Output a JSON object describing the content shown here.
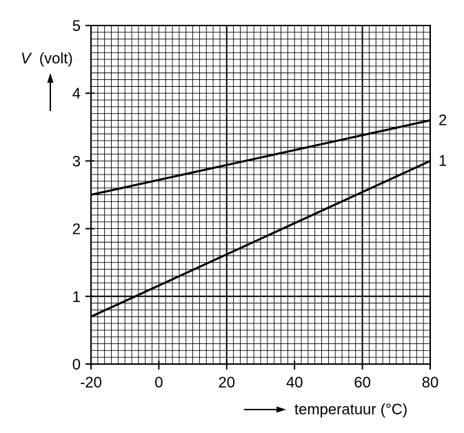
{
  "chart_data": {
    "type": "line",
    "ylabel_symbol": "V",
    "ylabel_unit": "(volt)",
    "xlabel": "temperatuur (°C)",
    "xlim": [
      -20,
      80
    ],
    "ylim": [
      0,
      5
    ],
    "xticks": [
      -20,
      0,
      20,
      40,
      60,
      80
    ],
    "yticks": [
      0,
      1,
      2,
      3,
      4,
      5
    ],
    "grid": true,
    "series": [
      {
        "name": "1",
        "x": [
          -20,
          80
        ],
        "y": [
          0.7,
          3.0
        ]
      },
      {
        "name": "2",
        "x": [
          -20,
          80
        ],
        "y": [
          2.5,
          3.6
        ]
      }
    ],
    "colors": {
      "line": "#000000",
      "grid": "#000000",
      "background": "#ffffff"
    }
  }
}
